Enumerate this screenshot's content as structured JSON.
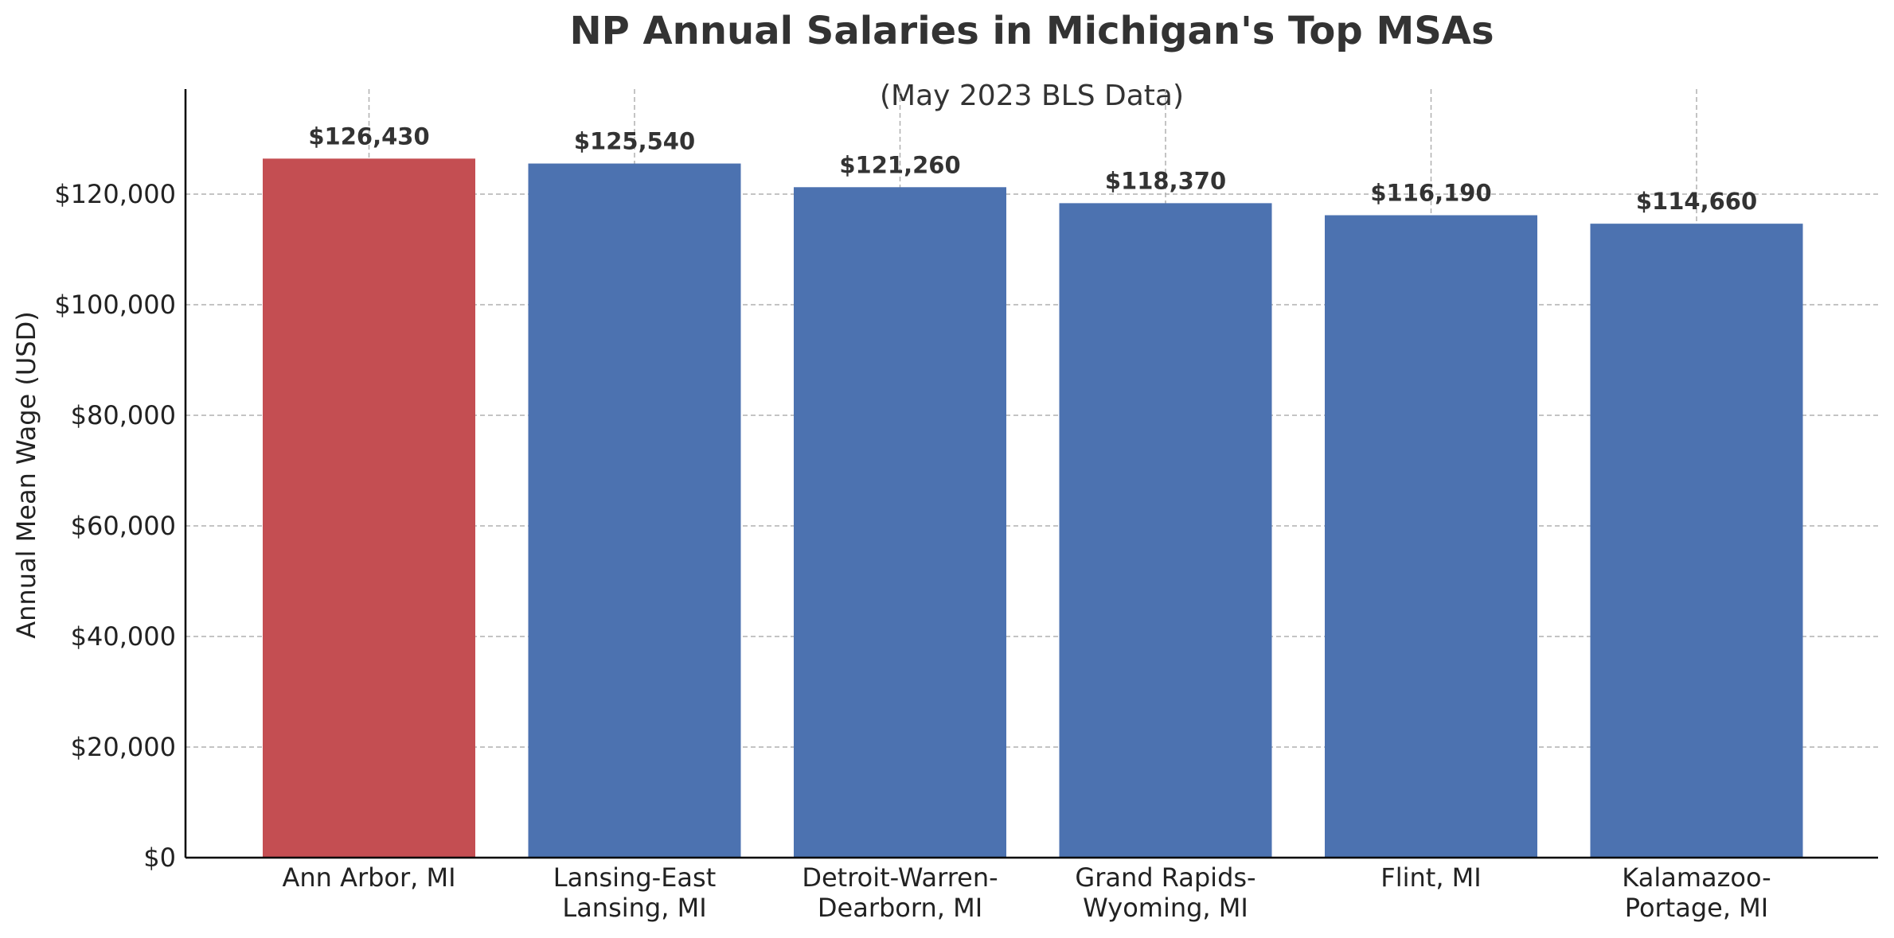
{
  "chart_data": {
    "type": "bar",
    "title": "NP Annual Salaries in Michigan's Top MSAs",
    "subtitle": "(May 2023 BLS Data)",
    "xlabel": "",
    "ylabel": "Annual Mean Wage (USD)",
    "ylim": [
      0,
      139000
    ],
    "yticks": [
      0,
      20000,
      40000,
      60000,
      80000,
      100000,
      120000
    ],
    "ytick_labels": [
      "$0",
      "$20,000",
      "$40,000",
      "$60,000",
      "$80,000",
      "$100,000",
      "$120,000"
    ],
    "categories": [
      "Ann Arbor, MI",
      "Lansing-East\nLansing, MI",
      "Detroit-Warren-\nDearborn, MI",
      "Grand Rapids-\nWyoming, MI",
      "Flint, MI",
      "Kalamazoo-\nPortage, MI"
    ],
    "values": [
      126430,
      125540,
      121260,
      118370,
      116190,
      114660
    ],
    "data_labels": [
      "$126,430",
      "$125,540",
      "$121,260",
      "$118,370",
      "$116,190",
      "$114,660"
    ],
    "bar_colors": [
      "#c44e52",
      "#4c72b0",
      "#4c72b0",
      "#4c72b0",
      "#4c72b0",
      "#4c72b0"
    ],
    "grid": true,
    "legend": false
  }
}
